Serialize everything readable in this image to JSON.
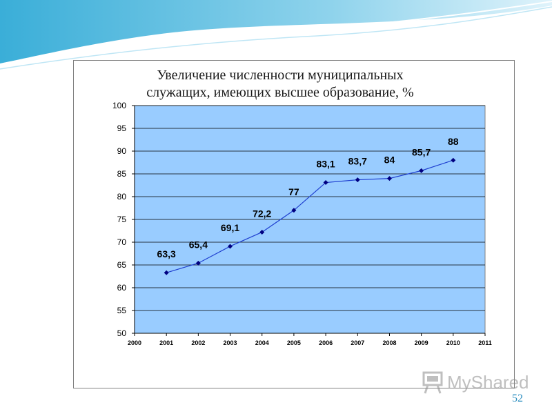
{
  "chart_data": {
    "type": "line",
    "title_lines": [
      "Увеличение численности муниципальных",
      "служащих, имеющих высшее образование, %"
    ],
    "x_ticks": [
      "2000",
      "2001",
      "2002",
      "2003",
      "2004",
      "2005",
      "2006",
      "2007",
      "2008",
      "2009",
      "2010",
      "2011"
    ],
    "y_ticks": [
      "50",
      "55",
      "60",
      "65",
      "70",
      "75",
      "80",
      "85",
      "90",
      "95",
      "100"
    ],
    "xlim": [
      2000,
      2011
    ],
    "ylim": [
      50,
      100
    ],
    "grid": true,
    "plot_background": "#99ccff",
    "line_color": "#1f3fd0",
    "marker_color": "#000080",
    "series": [
      {
        "x": [
          2001,
          2002,
          2003,
          2004,
          2005,
          2006,
          2007,
          2008,
          2009,
          2010
        ],
        "y": [
          63.3,
          65.4,
          69.1,
          72.2,
          77,
          83.1,
          83.7,
          84,
          85.7,
          88
        ],
        "labels": [
          "63,3",
          "65,4",
          "69,1",
          "72,2",
          "77",
          "83,1",
          "83,7",
          "84",
          "85,7",
          "88"
        ]
      }
    ]
  },
  "watermark": {
    "text": "MyShared",
    "icon": "presentation-board-icon"
  },
  "slide_number": "52"
}
